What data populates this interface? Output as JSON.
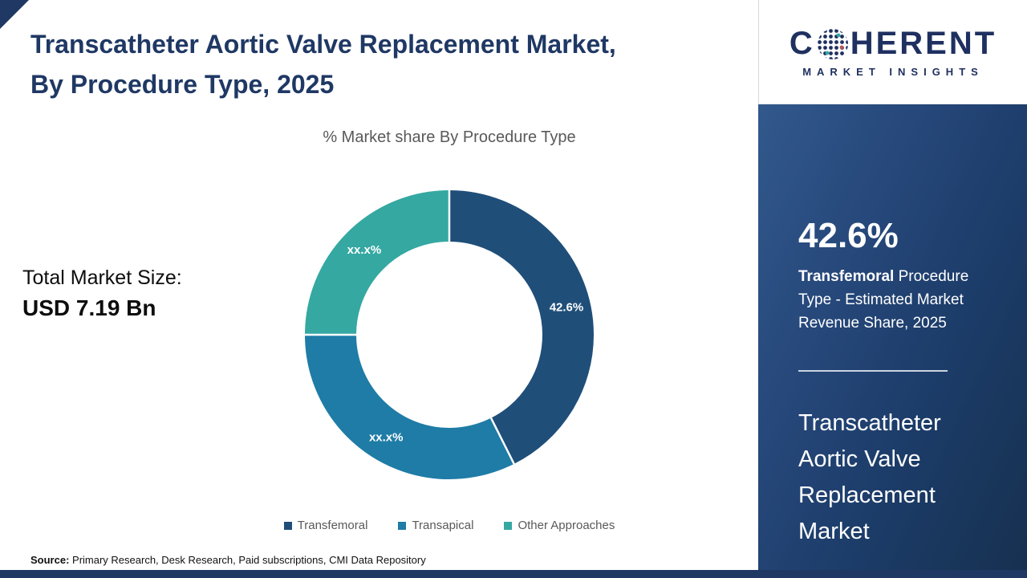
{
  "header": {
    "title_line1": "Transcatheter Aortic Valve Replacement Market,",
    "title_line2": "By Procedure Type, 2025"
  },
  "logo": {
    "name_prefix": "C",
    "name_suffix": "HERENT",
    "tagline": "MARKET INSIGHTS",
    "color": "#1f3060"
  },
  "chart_data": {
    "type": "pie",
    "donut": true,
    "title": "% Market share By Procedure Type",
    "categories": [
      "Transfemoral",
      "Transapical",
      "Other Approaches"
    ],
    "values": [
      42.6,
      32.4,
      25.0
    ],
    "values_note": "Only the Transfemoral share (42.6%) is labeled; the other two slices are masked as xx.x% and their values are estimated from the arc angles.",
    "labels": [
      "42.6%",
      "xx.x%",
      "xx.x%"
    ],
    "colors": [
      "#1f4e79",
      "#1e7ca6",
      "#35a8a2"
    ],
    "legend_position": "bottom"
  },
  "totals": {
    "label": "Total Market Size:",
    "value": "USD 7.19 Bn"
  },
  "sidebar": {
    "stat_value": "42.6%",
    "stat_bold": "Transfemoral",
    "stat_rest": " Procedure Type - Estimated Market Revenue Share, 2025",
    "market_name": "Transcatheter Aortic Valve Replacement Market",
    "accent_color": "#1f3864"
  },
  "source": {
    "label": "Source:",
    "text": " Primary Research, Desk Research, Paid subscriptions, CMI Data Repository"
  }
}
